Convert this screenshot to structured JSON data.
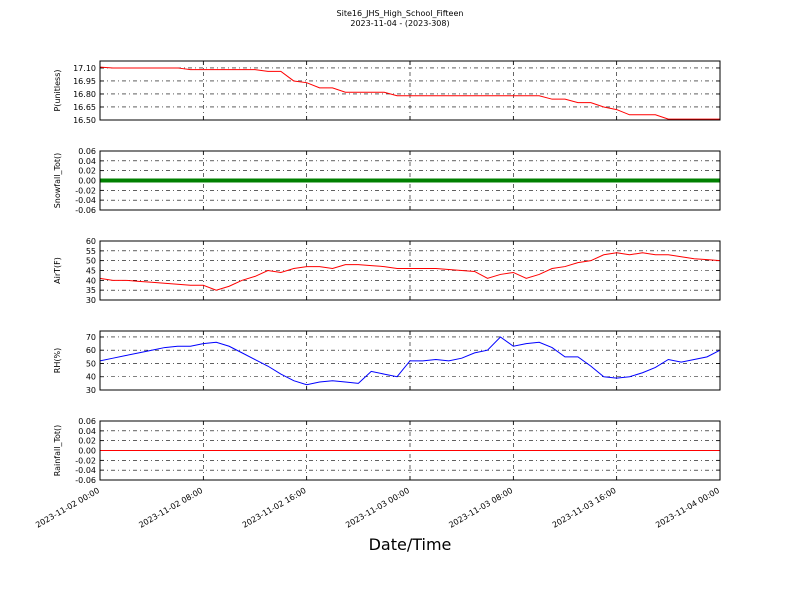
{
  "chart_data": {
    "type": "line",
    "title": "Site16_JHS_High_School_Fifteen",
    "subtitle": "2023-11-04 - (2023-308)",
    "xlabel": "Date/Time",
    "x": [
      "2023-11-02 00:00",
      "2023-11-02 01:00",
      "2023-11-02 02:00",
      "2023-11-02 03:00",
      "2023-11-02 04:00",
      "2023-11-02 05:00",
      "2023-11-02 06:00",
      "2023-11-02 07:00",
      "2023-11-02 08:00",
      "2023-11-02 09:00",
      "2023-11-02 10:00",
      "2023-11-02 11:00",
      "2023-11-02 12:00",
      "2023-11-02 13:00",
      "2023-11-02 14:00",
      "2023-11-02 15:00",
      "2023-11-02 16:00",
      "2023-11-02 17:00",
      "2023-11-02 18:00",
      "2023-11-02 19:00",
      "2023-11-02 20:00",
      "2023-11-02 21:00",
      "2023-11-02 22:00",
      "2023-11-02 23:00",
      "2023-11-03 00:00",
      "2023-11-03 01:00",
      "2023-11-03 02:00",
      "2023-11-03 03:00",
      "2023-11-03 04:00",
      "2023-11-03 05:00",
      "2023-11-03 06:00",
      "2023-11-03 07:00",
      "2023-11-03 08:00",
      "2023-11-03 09:00",
      "2023-11-03 10:00",
      "2023-11-03 11:00",
      "2023-11-03 12:00",
      "2023-11-03 13:00",
      "2023-11-03 14:00",
      "2023-11-03 15:00",
      "2023-11-03 16:00",
      "2023-11-03 17:00",
      "2023-11-03 18:00",
      "2023-11-03 19:00",
      "2023-11-03 20:00",
      "2023-11-03 21:00",
      "2023-11-03 22:00",
      "2023-11-03 23:00",
      "2023-11-04 00:00"
    ],
    "xlim": [
      "2023-11-02 00:00",
      "2023-11-04 00:00"
    ],
    "xticks": [
      "2023-11-02 00:00",
      "2023-11-02 08:00",
      "2023-11-02 16:00",
      "2023-11-03 00:00",
      "2023-11-03 08:00",
      "2023-11-03 16:00",
      "2023-11-04 00:00"
    ],
    "grid": true,
    "panels": [
      {
        "ylabel": "P(unitless)",
        "ylim": [
          16.5,
          17.18
        ],
        "yticks": [
          {
            "value": 16.5,
            "label": "16.50"
          },
          16.65,
          {
            "value": 16.8,
            "label": "16.80"
          },
          16.95,
          {
            "value": 17.1,
            "label": "17.10"
          }
        ],
        "series": [
          {
            "color": "#ff0000",
            "values": [
              17.11,
              17.1,
              17.1,
              17.1,
              17.1,
              17.1,
              17.1,
              17.08,
              17.08,
              17.08,
              17.08,
              17.08,
              17.08,
              17.06,
              17.06,
              16.95,
              16.93,
              16.87,
              16.87,
              16.82,
              16.82,
              16.82,
              16.82,
              16.78,
              16.78,
              16.78,
              16.78,
              16.78,
              16.78,
              16.78,
              16.78,
              16.78,
              16.78,
              16.78,
              16.78,
              16.74,
              16.74,
              16.7,
              16.7,
              16.65,
              16.62,
              16.56,
              16.56,
              16.56,
              16.51,
              16.51,
              16.51,
              16.51,
              16.51
            ]
          }
        ]
      },
      {
        "ylabel": "Snowfall_Tot()",
        "ylim": [
          -0.06,
          0.06
        ],
        "yticks": [
          -0.06,
          -0.04,
          -0.02,
          {
            "value": 0,
            "label": "0.00"
          },
          0.02,
          0.04,
          0.06
        ],
        "series": [
          {
            "color": "#008000",
            "values": [
              0,
              0,
              0,
              0,
              0,
              0,
              0,
              0,
              0,
              0,
              0,
              0,
              0,
              0,
              0,
              0,
              0,
              0,
              0,
              0,
              0,
              0,
              0,
              0,
              0,
              0,
              0,
              0,
              0,
              0,
              0,
              0,
              0,
              0,
              0,
              0,
              0,
              0,
              0,
              0,
              0,
              0,
              0,
              0,
              0,
              0,
              0,
              0,
              0
            ]
          }
        ]
      },
      {
        "ylabel": "AirT(F)",
        "ylim": [
          30,
          60
        ],
        "yticks": [
          30,
          35,
          40,
          45,
          50,
          55,
          60
        ],
        "series": [
          {
            "color": "#ff0000",
            "values": [
              41,
              40,
              40,
              39.5,
              39,
              38.5,
              38,
              37.5,
              37.5,
              35,
              37,
              40,
              42,
              45,
              44,
              46,
              47,
              47,
              46,
              48,
              48,
              47.5,
              47,
              46,
              46,
              46,
              46,
              45.5,
              45,
              44.5,
              41,
              43,
              44,
              41,
              43,
              46,
              47,
              49,
              50,
              53,
              54,
              53,
              54,
              53,
              53,
              52,
              51,
              50.5,
              50
            ]
          }
        ]
      },
      {
        "ylabel": "RH(%)",
        "ylim": [
          30,
          74.5
        ],
        "yticks": [
          30,
          40,
          50,
          60,
          70
        ],
        "series": [
          {
            "color": "#0000ff",
            "values": [
              52,
              54,
              56,
              58,
              60,
              62,
              63,
              63,
              65,
              66,
              63,
              58,
              53,
              48,
              42,
              37,
              34,
              36,
              37,
              36,
              35,
              44,
              42,
              40,
              52,
              52,
              53,
              52,
              54,
              58,
              60,
              70,
              63,
              65,
              66,
              62,
              55,
              55,
              48,
              40,
              39,
              40,
              43,
              47,
              53,
              51,
              53,
              55,
              60
            ]
          }
        ]
      },
      {
        "ylabel": "Rainfall_Tot()",
        "ylim": [
          -0.06,
          0.06
        ],
        "yticks": [
          -0.06,
          -0.04,
          -0.02,
          {
            "value": 0,
            "label": "0.00"
          },
          0.02,
          0.04,
          0.06
        ],
        "series": [
          {
            "color": "#ff0000",
            "values": [
              0,
              0,
              0,
              0,
              0,
              0,
              0,
              0,
              0,
              0,
              0,
              0,
              0,
              0,
              0,
              0,
              0,
              0,
              0,
              0,
              0,
              0,
              0,
              0,
              0,
              0,
              0,
              0,
              0,
              0,
              0,
              0,
              0,
              0,
              0,
              0,
              0,
              0,
              0,
              0,
              0,
              0,
              0,
              0,
              0,
              0,
              0,
              0,
              0
            ]
          }
        ]
      }
    ]
  }
}
